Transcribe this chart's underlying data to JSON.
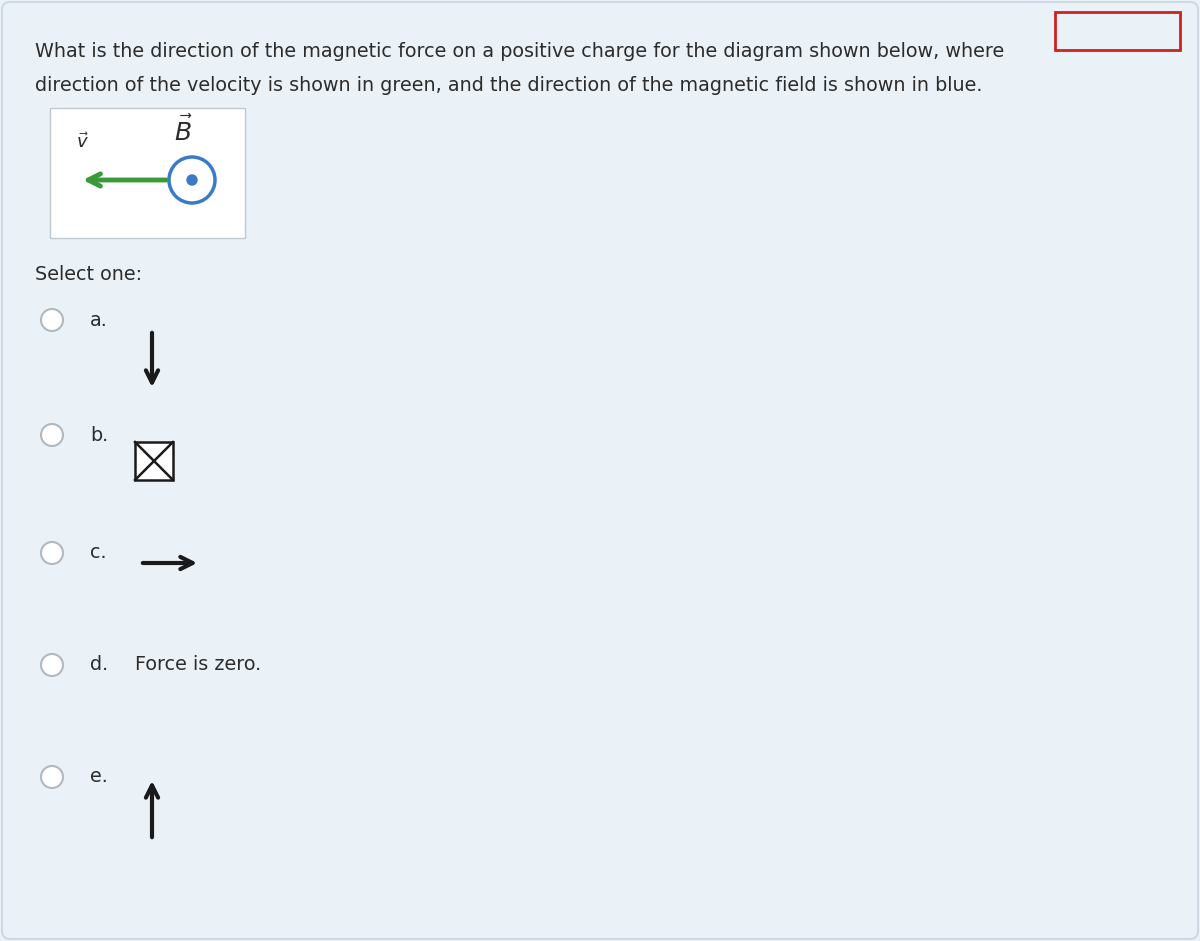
{
  "bg_color": "#dce8f0",
  "panel_bg": "#eaf1f7",
  "question_text_line1": "What is the direction of the magnetic force on a positive charge for the diagram shown below, where",
  "question_text_line2": "direction of the velocity is shown in green, and the direction of the magnetic field is shown in blue.",
  "select_one_text": "Select one:",
  "option_d_text": "Force is zero.",
  "text_color": "#2c2c2c",
  "radio_color": "#b0b8c0",
  "arrow_color": "#1a1a1a",
  "green_arrow_color": "#3a9a3a",
  "blue_circle_color": "#3a7ac8",
  "blue_dot_color": "#3a7ac8"
}
